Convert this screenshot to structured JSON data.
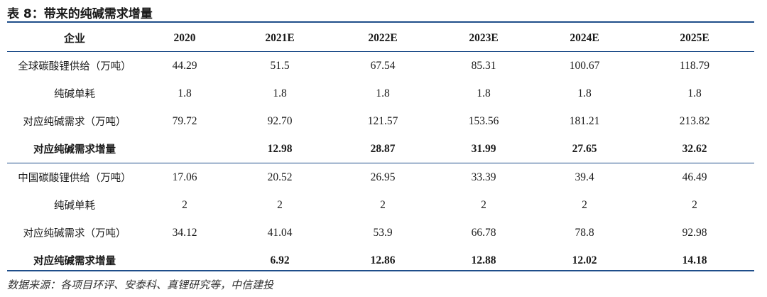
{
  "title": "表 8：带来的纯碱需求增量",
  "table": {
    "headers": [
      "企业",
      "2020",
      "2021E",
      "2022E",
      "2023E",
      "2024E",
      "2025E"
    ],
    "rows": [
      {
        "label": "全球碳酸锂供给（万吨）",
        "values": [
          "44.29",
          "51.5",
          "67.54",
          "85.31",
          "100.67",
          "118.79"
        ],
        "bold": false
      },
      {
        "label": "纯碱单耗",
        "values": [
          "1.8",
          "1.8",
          "1.8",
          "1.8",
          "1.8",
          "1.8"
        ],
        "bold": false
      },
      {
        "label": "对应纯碱需求（万吨）",
        "values": [
          "79.72",
          "92.70",
          "121.57",
          "153.56",
          "181.21",
          "213.82"
        ],
        "bold": false
      },
      {
        "label": "对应纯碱需求增量",
        "values": [
          "",
          "12.98",
          "28.87",
          "31.99",
          "27.65",
          "32.62"
        ],
        "bold": true
      },
      {
        "label": "中国碳酸锂供给（万吨）",
        "values": [
          "17.06",
          "20.52",
          "26.95",
          "33.39",
          "39.4",
          "46.49"
        ],
        "bold": false
      },
      {
        "label": "纯碱单耗",
        "values": [
          "2",
          "2",
          "2",
          "2",
          "2",
          "2"
        ],
        "bold": false
      },
      {
        "label": "对应纯碱需求（万吨）",
        "values": [
          "34.12",
          "41.04",
          "53.9",
          "66.78",
          "78.8",
          "92.98"
        ],
        "bold": false
      },
      {
        "label": "对应纯碱需求增量",
        "values": [
          "",
          "6.92",
          "12.86",
          "12.88",
          "12.02",
          "14.18"
        ],
        "bold": true
      }
    ]
  },
  "source": "数据来源：各项目环评、安泰科、真锂研究等，中信建投",
  "colors": {
    "rule": "#1f4e8a"
  }
}
